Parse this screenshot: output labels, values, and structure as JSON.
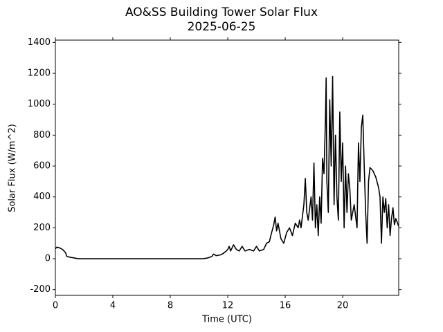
{
  "chart_data": {
    "type": "line",
    "title": "AO&SS Building Tower Solar Flux",
    "subtitle": "2025-06-25",
    "x_label": "Time (UTC)",
    "y_label": "Solar Flux (W/m^2)",
    "x": [
      0,
      0.1,
      0.3,
      0.5,
      0.7,
      0.8,
      1.0,
      1.3,
      1.6,
      10.3,
      10.6,
      10.9,
      11.0,
      11.2,
      11.5,
      11.7,
      11.9,
      12.0,
      12.1,
      12.2,
      12.4,
      12.6,
      12.8,
      13.0,
      13.2,
      13.5,
      13.8,
      14.0,
      14.2,
      14.5,
      14.7,
      14.9,
      15.0,
      15.2,
      15.3,
      15.4,
      15.5,
      15.7,
      15.9,
      16.1,
      16.3,
      16.5,
      16.7,
      16.9,
      17.0,
      17.1,
      17.3,
      17.4,
      17.5,
      17.6,
      17.8,
      17.9,
      18.0,
      18.1,
      18.2,
      18.3,
      18.4,
      18.5,
      18.6,
      18.7,
      18.8,
      18.85,
      18.9,
      19.0,
      19.1,
      19.2,
      19.3,
      19.4,
      19.5,
      19.6,
      19.7,
      19.8,
      19.9,
      20.0,
      20.1,
      20.2,
      20.3,
      20.4,
      20.5,
      20.6,
      20.8,
      21.0,
      21.1,
      21.2,
      21.3,
      21.4,
      21.5,
      21.6,
      21.7,
      21.8,
      21.9,
      22.1,
      22.3,
      22.5,
      22.6,
      22.7,
      22.8,
      22.9,
      23.0,
      23.1,
      23.2,
      23.3,
      23.4,
      23.5,
      23.6,
      23.7,
      23.9
    ],
    "series": [
      {
        "name": "Solar Flux",
        "color": "#000000",
        "values": [
          65,
          75,
          70,
          60,
          40,
          15,
          10,
          5,
          0,
          0,
          5,
          15,
          30,
          20,
          25,
          35,
          50,
          60,
          80,
          50,
          90,
          60,
          50,
          80,
          50,
          60,
          50,
          80,
          50,
          60,
          100,
          110,
          150,
          220,
          270,
          180,
          230,
          130,
          100,
          170,
          200,
          150,
          230,
          200,
          250,
          200,
          350,
          520,
          300,
          250,
          400,
          250,
          620,
          200,
          350,
          150,
          400,
          230,
          650,
          550,
          900,
          1170,
          500,
          300,
          1030,
          600,
          1180,
          350,
          800,
          400,
          250,
          950,
          500,
          750,
          200,
          600,
          300,
          550,
          450,
          250,
          350,
          200,
          750,
          500,
          850,
          930,
          600,
          300,
          100,
          500,
          590,
          570,
          530,
          460,
          400,
          100,
          400,
          300,
          390,
          200,
          350,
          150,
          260,
          330,
          220,
          260,
          210
        ]
      }
    ],
    "xlim": [
      0,
      23.9
    ],
    "xticks": [
      0,
      4,
      8,
      12,
      16,
      20
    ],
    "ylim": [
      -237,
      1415
    ],
    "yticks": [
      -200,
      0,
      200,
      400,
      600,
      800,
      1000,
      1200,
      1400
    ],
    "grid": false
  }
}
